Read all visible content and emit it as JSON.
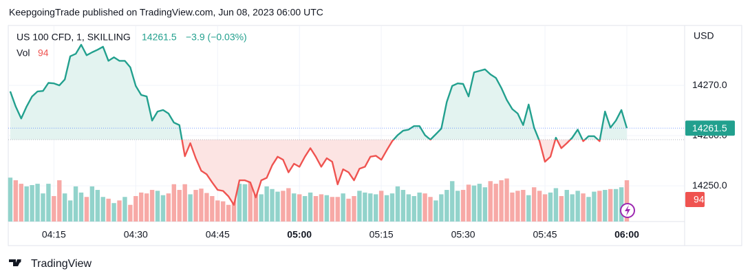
{
  "header": {
    "title": "KeepgoingTrade published on TradingView.com, Jun 08, 2023 06:00 UTC"
  },
  "footer": {
    "brand": "TradingView"
  },
  "chart_data": {
    "type": "baseline",
    "symbol": "US 100 CFD, 1, SKILLING",
    "change": "−3.9 (−0.03%)",
    "currency": "USD",
    "baseline": 14259.2,
    "up_color": "#22a08e",
    "down_color": "#ef5350",
    "up_fill": "#e3f3f0",
    "down_fill": "#fce4e3",
    "grid": true,
    "ylim": [
      14242.9,
      14281.8
    ],
    "yticks": [
      {
        "value": 14250,
        "label": "14250.0"
      },
      {
        "value": 14260,
        "label": "14260.0"
      },
      {
        "value": 14270,
        "label": "14270.0"
      }
    ],
    "xticks": [
      "04:15",
      "04:30",
      "04:45",
      "05:00",
      "05:15",
      "05:30",
      "05:45",
      "06:00"
    ],
    "series": [
      {
        "name": "US 100 CFD",
        "values": [
          14268.8,
          14265.8,
          14263.4,
          14265.8,
          14267.8,
          14268.8,
          14268.9,
          14270.5,
          14270.4,
          14270.0,
          14271.2,
          14275.8,
          14276.3,
          14278.1,
          14276.0,
          14276.6,
          14277.1,
          14277.7,
          14274.9,
          14275.6,
          14274.9,
          14274.9,
          14273.6,
          14269.9,
          14268.1,
          14267.8,
          14263.0,
          14264.8,
          14265.1,
          14264.4,
          14262.6,
          14262.1,
          14255.9,
          14258.5,
          14255.5,
          14253.0,
          14252.3,
          14250.7,
          14249.2,
          14249.0,
          14247.9,
          14246.2,
          14251.1,
          14251.1,
          14250.7,
          14247.7,
          14251.1,
          14251.6,
          14254.1,
          14255.8,
          14255.2,
          14252.7,
          14254.4,
          14253.8,
          14255.8,
          14257.5,
          14255.8,
          14253.8,
          14255.5,
          14254.8,
          14250.3,
          14253.3,
          14252.7,
          14251.1,
          14253.4,
          14253.8,
          14255.8,
          14256.0,
          14255.2,
          14257.1,
          14258.9,
          14260.1,
          14261.0,
          14261.2,
          14261.9,
          14261.9,
          14260.1,
          14259.2,
          14260.3,
          14261.4,
          14266.7,
          14269.9,
          14270.4,
          14270.3,
          14267.8,
          14272.6,
          14272.9,
          14273.2,
          14272.2,
          14271.5,
          14269.5,
          14267.1,
          14265.3,
          14264.4,
          14262.1,
          14266.2,
          14261.6,
          14258.9,
          14254.8,
          14255.8,
          14259.6,
          14257.5,
          14258.5,
          14259.6,
          14261.2,
          14258.9,
          14259.9,
          14259.9,
          14258.9,
          14264.8,
          14261.6,
          14263.0,
          14265.1,
          14261.5
        ]
      }
    ],
    "volume": {
      "name": "Vol",
      "ylim": [
        0,
        445
      ],
      "up_color": "#92d3cb",
      "down_color": "#f7a9a6",
      "values": [
        100,
        94,
        86,
        80,
        83,
        86,
        64,
        86,
        58,
        94,
        64,
        48,
        80,
        66,
        56,
        80,
        72,
        56,
        52,
        42,
        48,
        56,
        38,
        58,
        66,
        64,
        72,
        70,
        60,
        64,
        85,
        72,
        85,
        62,
        72,
        75,
        65,
        58,
        48,
        46,
        38,
        52,
        86,
        85,
        90,
        74,
        62,
        80,
        74,
        68,
        70,
        76,
        64,
        62,
        58,
        66,
        58,
        62,
        60,
        56,
        56,
        64,
        52,
        58,
        70,
        66,
        64,
        62,
        70,
        60,
        64,
        80,
        72,
        62,
        58,
        66,
        64,
        56,
        48,
        62,
        72,
        92,
        70,
        72,
        84,
        82,
        86,
        78,
        92,
        86,
        94,
        98,
        66,
        70,
        72,
        60,
        78,
        70,
        62,
        66,
        76,
        58,
        72,
        62,
        70,
        64,
        56,
        68,
        70,
        72,
        74,
        74,
        78,
        94
      ]
    }
  }
}
